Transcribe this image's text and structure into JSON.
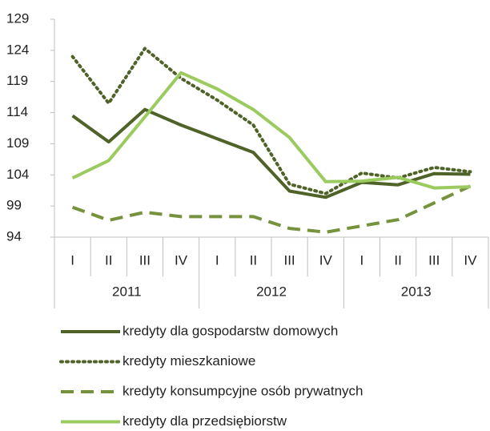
{
  "chart_data": {
    "type": "line",
    "categories": [
      "I",
      "II",
      "III",
      "IV",
      "I",
      "II",
      "III",
      "IV",
      "I",
      "II",
      "III",
      "IV"
    ],
    "years": [
      "2011",
      "2012",
      "2013"
    ],
    "ylim": [
      94,
      129
    ],
    "yticks": [
      94,
      99,
      104,
      109,
      114,
      119,
      124,
      129
    ],
    "legend": "bottom",
    "series": [
      {
        "name": "kredyty dla gospodarstw domowych",
        "color": "#4f6228",
        "dash": "solid",
        "values": [
          113.5,
          109.3,
          114.5,
          112,
          109.8,
          107.6,
          101.4,
          100.4,
          102.8,
          102.4,
          104.2,
          104.1
        ]
      },
      {
        "name": "kredyty mieszkaniowe",
        "color": "#4f6228",
        "dash": "dotted",
        "values": [
          123,
          115.5,
          124.3,
          119.5,
          116,
          112,
          102.5,
          101,
          104.3,
          103.5,
          105.2,
          104.5
        ]
      },
      {
        "name": "kredyty konsumpcyjne osób prywatnych",
        "color": "#76923c",
        "dash": "dashed",
        "values": [
          98.8,
          96.7,
          98,
          97.3,
          97.3,
          97.3,
          95.4,
          94.8,
          95.8,
          96.8,
          99.5,
          102.2
        ]
      },
      {
        "name": "kredyty dla przedsiębiorstw",
        "color": "#9bcb5f",
        "dash": "solid",
        "values": [
          103.5,
          106.3,
          113.3,
          120.4,
          117.8,
          114.5,
          110,
          102.9,
          103,
          103.6,
          101.9,
          102.1
        ]
      }
    ]
  }
}
